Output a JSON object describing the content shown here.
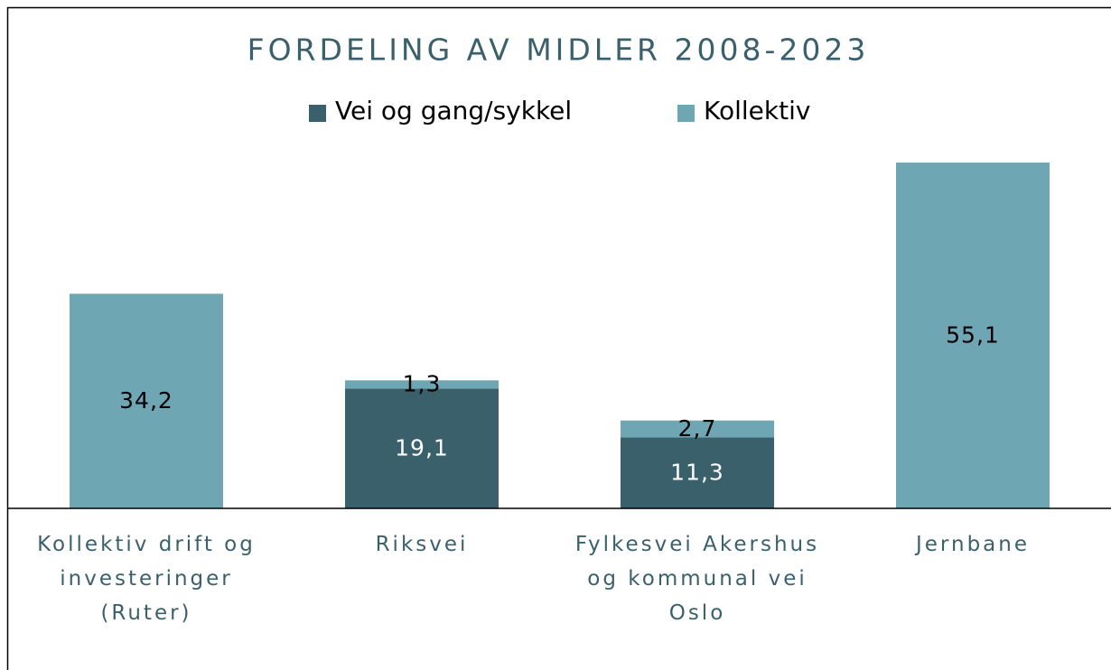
{
  "chart_data": {
    "type": "stacked_bar",
    "title": "FORDELING AV MIDLER 2008-2023",
    "categories": [
      "Kollektiv drift og investeringer (Ruter)",
      "Riksvei",
      "Fylkesvei Akershus og kommunal vei Oslo",
      "Jernbane"
    ],
    "series": [
      {
        "name": "Vei og gang/sykkel",
        "color": "#3a616b",
        "values": [
          null,
          19.1,
          11.3,
          null
        ],
        "value_labels": [
          null,
          "19,1",
          "11,3",
          null
        ]
      },
      {
        "name": "Kollektiv",
        "color": "#6fa6b4",
        "values": [
          34.2,
          1.3,
          2.7,
          55.1
        ],
        "value_labels": [
          "34,2",
          "1,3",
          "2,7",
          "55,1"
        ]
      }
    ],
    "legend": "top"
  }
}
